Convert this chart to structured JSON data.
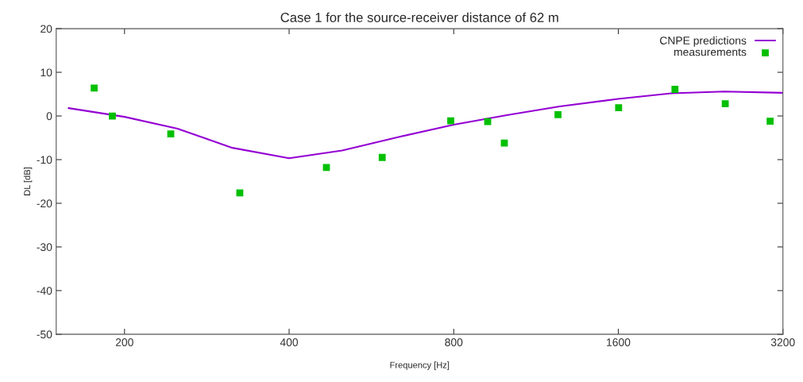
{
  "chart_data": {
    "type": "line",
    "title": "Case 1 for the source-receiver distance of 62 m",
    "xlabel": "Frequency [Hz]",
    "ylabel": "DL [dB]",
    "log": "x",
    "xlim": [
      150,
      3200
    ],
    "xticks": [
      200,
      400,
      800,
      1600,
      3200
    ],
    "ylim": [
      -50,
      20
    ],
    "yticks": [
      -50,
      -40,
      -30,
      -20,
      -10,
      0,
      10,
      20
    ],
    "grid": false,
    "legend": "top right",
    "series": [
      {
        "name": "CNPE predictions",
        "color": "#9400d3",
        "marker": "none",
        "line_style": "solid",
        "x": [
          158,
          200,
          250,
          315,
          400,
          500,
          630,
          800,
          1000,
          1250,
          1600,
          2000,
          2500,
          3200
        ],
        "values": [
          1.8,
          -0.2,
          -2.9,
          -7.3,
          -9.7,
          -7.9,
          -4.9,
          -2.0,
          0.2,
          2.2,
          3.9,
          5.2,
          5.6,
          5.3
        ]
      },
      {
        "name": "measurements",
        "type": "scatter",
        "color": "#00c000",
        "marker": "square",
        "x": [
          176,
          190,
          243,
          325,
          468,
          592,
          790,
          923,
          990,
          1241,
          1602,
          2031,
          2510,
          3032
        ],
        "values": [
          6.4,
          0,
          -4.1,
          -17.6,
          -11.8,
          -9.5,
          -1.1,
          -1.3,
          -6.2,
          0.3,
          1.9,
          6.1,
          2.8,
          -1.2
        ]
      }
    ]
  }
}
